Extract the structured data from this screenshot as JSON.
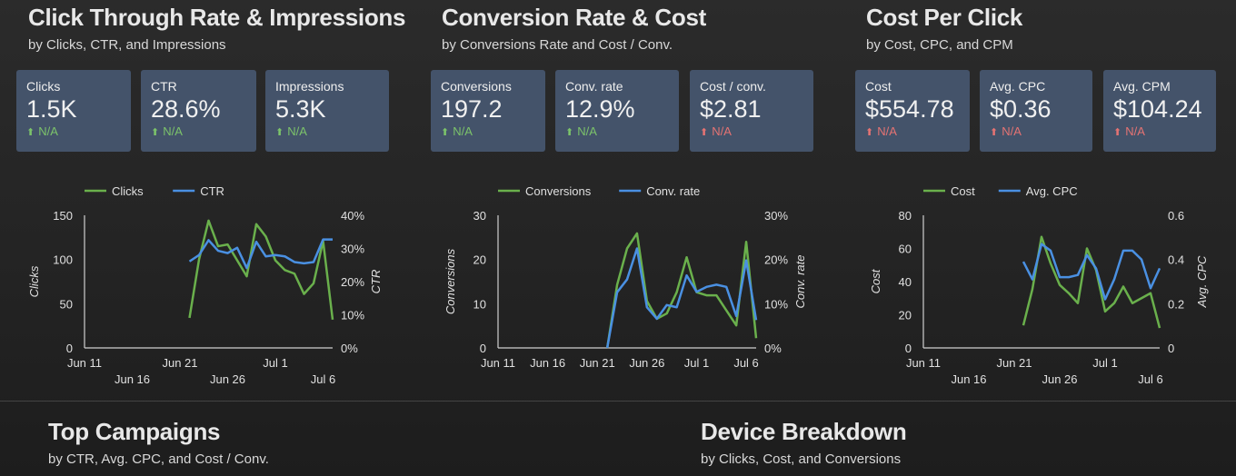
{
  "sections": [
    {
      "title": "Click Through Rate & Impressions",
      "subtitle": "by Clicks, CTR, and Impressions",
      "cards": [
        {
          "label": "Clicks",
          "value": "1.5K",
          "change": "N/A",
          "trend": "up",
          "good": true
        },
        {
          "label": "CTR",
          "value": "28.6%",
          "change": "N/A",
          "trend": "up",
          "good": true
        },
        {
          "label": "Impressions",
          "value": "5.3K",
          "change": "N/A",
          "trend": "up",
          "good": true
        }
      ]
    },
    {
      "title": "Conversion Rate & Cost",
      "subtitle": "by Conversions Rate and Cost / Conv.",
      "cards": [
        {
          "label": "Conversions",
          "value": "197.2",
          "change": "N/A",
          "trend": "up",
          "good": true
        },
        {
          "label": "Conv. rate",
          "value": "12.9%",
          "change": "N/A",
          "trend": "up",
          "good": true
        },
        {
          "label": "Cost / conv.",
          "value": "$2.81",
          "change": "N/A",
          "trend": "up",
          "good": false
        }
      ]
    },
    {
      "title": "Cost Per Click",
      "subtitle": "by Cost, CPC, and CPM",
      "cards": [
        {
          "label": "Cost",
          "value": "$554.78",
          "change": "N/A",
          "trend": "up",
          "good": false
        },
        {
          "label": "Avg. CPC",
          "value": "$0.36",
          "change": "N/A",
          "trend": "up",
          "good": false
        },
        {
          "label": "Avg. CPM",
          "value": "$104.24",
          "change": "N/A",
          "trend": "up",
          "good": false
        }
      ]
    }
  ],
  "bottom": [
    {
      "title": "Top Campaigns",
      "subtitle": "by CTR, Avg. CPC, and Cost / Conv."
    },
    {
      "title": "Device Breakdown",
      "subtitle": "by Clicks, Cost, and Conversions"
    }
  ],
  "colors": {
    "green": "#6ab04c",
    "blue": "#4a90e2",
    "card": "#44536a",
    "up_good": "#7cc36a",
    "up_bad": "#e57373"
  },
  "chart_data": [
    {
      "type": "line",
      "x_ticks": [
        "Jun 11",
        "Jun 16",
        "Jun 21",
        "Jun 26",
        "Jul 1",
        "Jul 6"
      ],
      "x_range": [
        "Jun 11",
        "Jul 7"
      ],
      "x": [
        "Jun 22",
        "Jun 23",
        "Jun 24",
        "Jun 25",
        "Jun 26",
        "Jun 27",
        "Jun 28",
        "Jun 29",
        "Jun 30",
        "Jul 1",
        "Jul 2",
        "Jul 3",
        "Jul 4",
        "Jul 5",
        "Jul 6",
        "Jul 7"
      ],
      "ylabel": "Clicks",
      "y2label": "CTR",
      "ylim": [
        0,
        150
      ],
      "y2lim": [
        0,
        40
      ],
      "y_ticks": [
        "0",
        "50",
        "100",
        "150"
      ],
      "y2_ticks": [
        "0%",
        "10%",
        "20%",
        "30%",
        "40%"
      ],
      "series": [
        {
          "name": "Clicks",
          "axis": "left",
          "color": "#6ab04c",
          "values": [
            34,
            100,
            144,
            115,
            117,
            99,
            81,
            140,
            126,
            99,
            88,
            84,
            61,
            73,
            121,
            32
          ]
        },
        {
          "name": "CTR",
          "axis": "right",
          "color": "#4a90e2",
          "values": [
            26.1,
            28,
            32.5,
            29.3,
            28.6,
            30.2,
            24.1,
            32,
            27.6,
            28,
            27.6,
            25.9,
            25.5,
            25.9,
            32.7,
            32.7
          ]
        }
      ],
      "legend": "top",
      "grid": false
    },
    {
      "type": "line",
      "x_ticks": [
        "Jun 11",
        "Jun 16",
        "Jun 21",
        "Jun 26",
        "Jul 1",
        "Jul 6"
      ],
      "x_range": [
        "Jun 11",
        "Jul 7"
      ],
      "x": [
        "Jun 22",
        "Jun 23",
        "Jun 24",
        "Jun 25",
        "Jun 26",
        "Jun 27",
        "Jun 28",
        "Jun 29",
        "Jun 30",
        "Jul 1",
        "Jul 2",
        "Jul 3",
        "Jul 4",
        "Jul 5",
        "Jul 6",
        "Jul 7"
      ],
      "ylabel": "Conversions",
      "y2label": "Conv. rate",
      "ylim": [
        0,
        30
      ],
      "y2lim": [
        0,
        30
      ],
      "y_ticks": [
        "0",
        "10",
        "20",
        "30"
      ],
      "y2_ticks": [
        "0%",
        "10%",
        "20%",
        "30%"
      ],
      "series": [
        {
          "name": "Conversions",
          "axis": "left",
          "color": "#6ab04c",
          "values": [
            0,
            14.3,
            22.5,
            25.9,
            10.6,
            6.6,
            7.8,
            12.6,
            20.5,
            12.6,
            11.9,
            11.9,
            8.5,
            5.1,
            24,
            2.2
          ]
        },
        {
          "name": "Conv. rate",
          "axis": "right",
          "color": "#4a90e2",
          "values": [
            0,
            12.6,
            15.5,
            22.5,
            9.2,
            6.6,
            9.7,
            9.2,
            16.4,
            12.7,
            13.8,
            14.3,
            13.8,
            7.2,
            19.8,
            6.3
          ]
        }
      ],
      "legend": "top",
      "grid": false
    },
    {
      "type": "line",
      "x_ticks": [
        "Jun 11",
        "Jun 16",
        "Jun 21",
        "Jun 26",
        "Jul 1",
        "Jul 6"
      ],
      "x_range": [
        "Jun 11",
        "Jul 7"
      ],
      "x": [
        "Jun 22",
        "Jun 23",
        "Jun 24",
        "Jun 25",
        "Jun 26",
        "Jun 27",
        "Jun 28",
        "Jun 29",
        "Jun 30",
        "Jul 1",
        "Jul 2",
        "Jul 3",
        "Jul 4",
        "Jul 5",
        "Jul 6",
        "Jul 7"
      ],
      "ylabel": "Cost",
      "y2label": "Avg. CPC",
      "ylim": [
        0,
        80
      ],
      "y2lim": [
        0,
        0.6
      ],
      "y_ticks": [
        "0",
        "20",
        "40",
        "60",
        "80"
      ],
      "y2_ticks": [
        "0",
        "0.2",
        "0.4",
        "0.6"
      ],
      "series": [
        {
          "name": "Cost",
          "axis": "left",
          "color": "#6ab04c",
          "values": [
            13.6,
            35.5,
            67,
            51,
            38,
            33,
            27,
            60,
            47,
            22,
            27,
            37,
            27,
            30,
            33,
            12
          ]
        },
        {
          "name": "Avg. CPC",
          "axis": "right",
          "color": "#4a90e2",
          "values": [
            0.39,
            0.31,
            0.47,
            0.44,
            0.32,
            0.32,
            0.33,
            0.42,
            0.36,
            0.22,
            0.31,
            0.44,
            0.44,
            0.4,
            0.27,
            0.36
          ]
        }
      ],
      "legend": "top",
      "grid": false
    }
  ]
}
